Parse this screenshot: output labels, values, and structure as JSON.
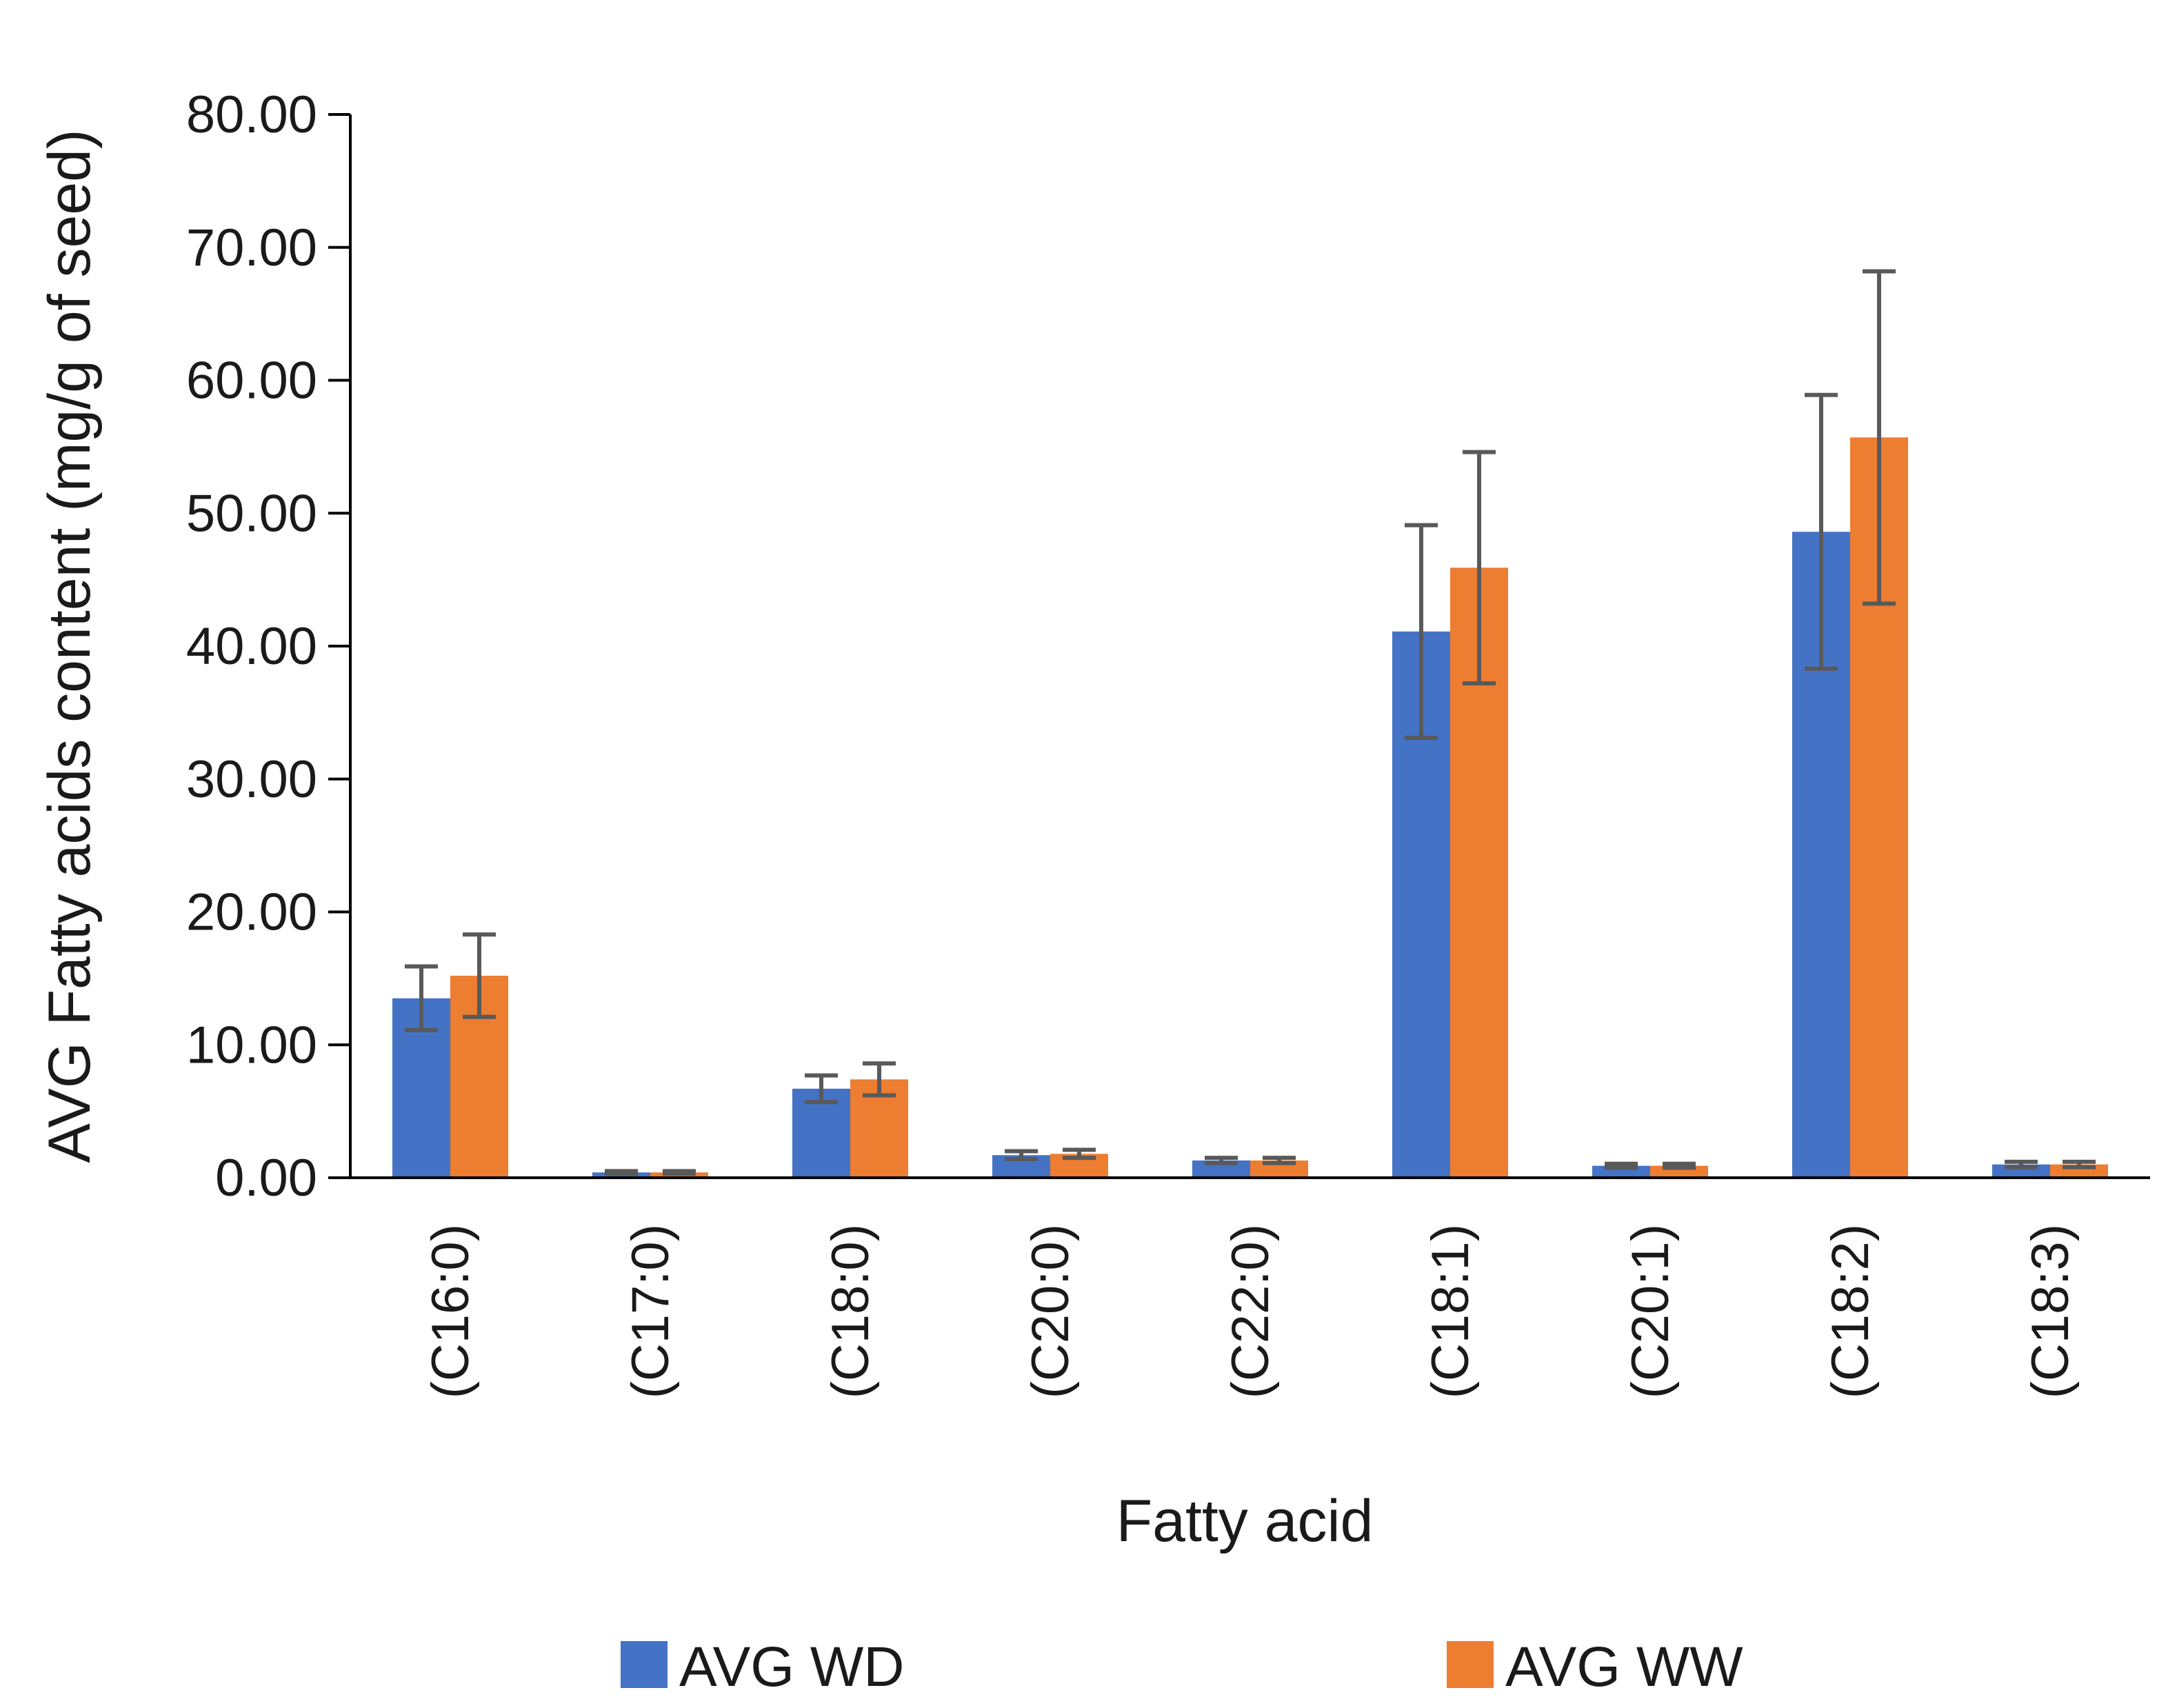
{
  "chart_data": {
    "type": "bar",
    "title": "",
    "xlabel": "Fatty acid",
    "ylabel": "AVG Fatty acids content (mg/g of seed)",
    "ylim": [
      0,
      80
    ],
    "yticks": [
      0,
      10,
      20,
      30,
      40,
      50,
      60,
      70,
      80
    ],
    "ytick_labels": [
      "0.00",
      "10.00",
      "20.00",
      "30.00",
      "40.00",
      "50.00",
      "60.00",
      "70.00",
      "80.00"
    ],
    "categories": [
      "(C16:0)",
      "(C17:0)",
      "(C18:0)",
      "(C20:0)",
      "(C22:0)",
      "(C18:1)",
      "(C20:1)",
      "(C18:2)",
      "(C18:3)"
    ],
    "series": [
      {
        "name": "AVG WD",
        "color": "#4472c4",
        "values": [
          13.5,
          0.4,
          6.7,
          1.7,
          1.3,
          41.1,
          0.9,
          48.6,
          1.0
        ],
        "errors": [
          2.4,
          0.1,
          1.0,
          0.3,
          0.2,
          8.0,
          0.15,
          10.3,
          0.2
        ]
      },
      {
        "name": "AVG WW",
        "color": "#ed7d31",
        "values": [
          15.2,
          0.4,
          7.4,
          1.8,
          1.3,
          45.9,
          0.9,
          55.7,
          1.0
        ],
        "errors": [
          3.1,
          0.1,
          1.2,
          0.3,
          0.2,
          8.7,
          0.15,
          12.5,
          0.2
        ]
      }
    ],
    "error_bar_color": "#595959",
    "legend_position": "bottom",
    "grid": false
  }
}
